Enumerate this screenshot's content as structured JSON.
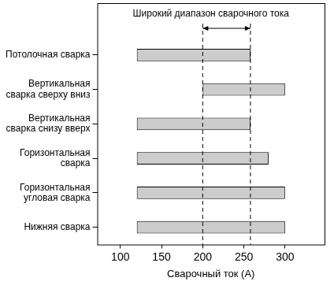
{
  "chart_data": {
    "type": "bar",
    "orientation": "horizontal",
    "categories": [
      [
        "Потолочная сварка"
      ],
      [
        "Вертикальная",
        "сварка сверху вниз"
      ],
      [
        "Вертикальная",
        "сварка снизу вверх"
      ],
      [
        "Горизонтальная",
        "сварка"
      ],
      [
        "Горизонтальная",
        "угловая сварка"
      ],
      [
        "Нижняя сварка"
      ]
    ],
    "values": [
      [
        120,
        258
      ],
      [
        200,
        300
      ],
      [
        120,
        258
      ],
      [
        120,
        280
      ],
      [
        120,
        300
      ],
      [
        120,
        300
      ]
    ],
    "color": "#cccccc",
    "xlabel": "Сварочный ток (А)",
    "xlim": [
      72,
      348
    ],
    "xticks": [
      100,
      150,
      200,
      250,
      300
    ],
    "grid": false,
    "annotation": {
      "text": "Широкий диапазон сварочного тока",
      "range": [
        200,
        258
      ]
    }
  }
}
